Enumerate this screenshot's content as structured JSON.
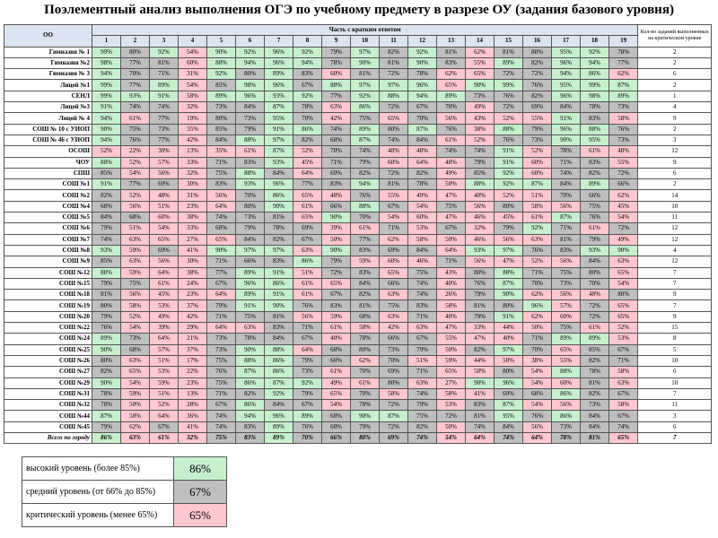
{
  "title": "Поэлементный анализ выполнения ОГЭ по учебному предмету в разрезе ОУ (задания базового уровня)",
  "header": {
    "oo": "ОО",
    "part": "Часть с кратким ответом",
    "columns": [
      1,
      2,
      3,
      4,
      5,
      6,
      7,
      8,
      9,
      10,
      11,
      12,
      13,
      14,
      15,
      16,
      17,
      18,
      19
    ],
    "count_label": "Кол-во заданий выполненных на критическом уровне"
  },
  "rows": [
    {
      "name": "Гимназия № 1",
      "values": [
        "99%",
        "80%",
        "92%",
        "54%",
        "90%",
        "92%",
        "96%",
        "92%",
        "79%",
        "97%",
        "82%",
        "92%",
        "81%",
        "62%",
        "81%",
        "80%",
        "95%",
        "92%",
        "78%"
      ],
      "critical_count": 2
    },
    {
      "name": "Гимназия №2",
      "values": [
        "98%",
        "77%",
        "81%",
        "60%",
        "88%",
        "94%",
        "96%",
        "94%",
        "78%",
        "90%",
        "81%",
        "90%",
        "83%",
        "55%",
        "89%",
        "82%",
        "96%",
        "94%",
        "77%"
      ],
      "critical_count": 2
    },
    {
      "name": "Гимназия № 3",
      "values": [
        "94%",
        "70%",
        "71%",
        "31%",
        "92%",
        "80%",
        "89%",
        "83%",
        "60%",
        "81%",
        "72%",
        "78%",
        "62%",
        "65%",
        "72%",
        "72%",
        "94%",
        "86%",
        "62%"
      ],
      "critical_count": 6
    },
    {
      "name": "Лицей №1",
      "values": [
        "99%",
        "77%",
        "89%",
        "54%",
        "85%",
        "98%",
        "96%",
        "67%",
        "88%",
        "97%",
        "97%",
        "96%",
        "65%",
        "90%",
        "99%",
        "76%",
        "95%",
        "99%",
        "87%"
      ],
      "critical_count": 2
    },
    {
      "name": "СЕНЛ",
      "values": [
        "99%",
        "93%",
        "91%",
        "58%",
        "89%",
        "96%",
        "93%",
        "92%",
        "77%",
        "92%",
        "88%",
        "94%",
        "89%",
        "73%",
        "76%",
        "82%",
        "96%",
        "98%",
        "89%"
      ],
      "critical_count": 1
    },
    {
      "name": "Лицей №3",
      "values": [
        "91%",
        "74%",
        "74%",
        "32%",
        "73%",
        "84%",
        "87%",
        "78%",
        "63%",
        "86%",
        "72%",
        "67%",
        "70%",
        "49%",
        "72%",
        "69%",
        "84%",
        "78%",
        "73%"
      ],
      "critical_count": 4
    },
    {
      "name": "Лицей № 4",
      "values": [
        "94%",
        "61%",
        "77%",
        "19%",
        "80%",
        "73%",
        "95%",
        "70%",
        "42%",
        "75%",
        "65%",
        "70%",
        "56%",
        "43%",
        "52%",
        "55%",
        "91%",
        "83%",
        "58%"
      ],
      "critical_count": 9
    },
    {
      "name": "СОШ № 10 с УИОП",
      "values": [
        "90%",
        "75%",
        "73%",
        "35%",
        "85%",
        "79%",
        "91%",
        "86%",
        "74%",
        "89%",
        "80%",
        "87%",
        "76%",
        "38%",
        "88%",
        "79%",
        "96%",
        "88%",
        "76%"
      ],
      "critical_count": 2
    },
    {
      "name": "СОШ № 46 с УИОП",
      "values": [
        "94%",
        "76%",
        "77%",
        "42%",
        "84%",
        "88%",
        "97%",
        "82%",
        "68%",
        "87%",
        "74%",
        "84%",
        "61%",
        "52%",
        "76%",
        "73%",
        "90%",
        "95%",
        "73%"
      ],
      "critical_count": 3
    },
    {
      "name": "ОСОШ",
      "values": [
        "52%",
        "22%",
        "30%",
        "13%",
        "35%",
        "61%",
        "87%",
        "52%",
        "70%",
        "74%",
        "48%",
        "48%",
        "74%",
        "74%",
        "91%",
        "52%",
        "78%",
        "61%",
        "48%"
      ],
      "critical_count": 12
    },
    {
      "name": "ЧОУ",
      "values": [
        "88%",
        "52%",
        "57%",
        "33%",
        "71%",
        "83%",
        "93%",
        "45%",
        "71%",
        "79%",
        "60%",
        "64%",
        "48%",
        "79%",
        "91%",
        "60%",
        "71%",
        "83%",
        "55%"
      ],
      "critical_count": 9
    },
    {
      "name": "СПШ",
      "values": [
        "85%",
        "54%",
        "56%",
        "32%",
        "75%",
        "88%",
        "84%",
        "64%",
        "69%",
        "82%",
        "72%",
        "82%",
        "49%",
        "85%",
        "92%",
        "60%",
        "74%",
        "82%",
        "72%"
      ],
      "critical_count": 6
    },
    {
      "name": "СОШ №1",
      "values": [
        "91%",
        "77%",
        "69%",
        "30%",
        "83%",
        "93%",
        "96%",
        "77%",
        "83%",
        "94%",
        "81%",
        "78%",
        "50%",
        "88%",
        "92%",
        "87%",
        "84%",
        "89%",
        "66%"
      ],
      "critical_count": 2
    },
    {
      "name": "СОШ №2",
      "values": [
        "82%",
        "52%",
        "48%",
        "31%",
        "56%",
        "70%",
        "86%",
        "65%",
        "48%",
        "76%",
        "55%",
        "49%",
        "47%",
        "40%",
        "52%",
        "51%",
        "70%",
        "66%",
        "62%"
      ],
      "critical_count": 14
    },
    {
      "name": "СОШ №4",
      "values": [
        "68%",
        "56%",
        "51%",
        "23%",
        "64%",
        "80%",
        "90%",
        "61%",
        "66%",
        "88%",
        "67%",
        "54%",
        "75%",
        "56%",
        "80%",
        "58%",
        "56%",
        "75%",
        "45%"
      ],
      "critical_count": 10
    },
    {
      "name": "СОШ №5",
      "values": [
        "84%",
        "68%",
        "60%",
        "38%",
        "74%",
        "73%",
        "81%",
        "65%",
        "90%",
        "70%",
        "54%",
        "60%",
        "47%",
        "46%",
        "45%",
        "61%",
        "87%",
        "76%",
        "54%"
      ],
      "critical_count": 11
    },
    {
      "name": "СОШ №6",
      "values": [
        "79%",
        "51%",
        "54%",
        "33%",
        "68%",
        "79%",
        "78%",
        "69%",
        "39%",
        "61%",
        "71%",
        "53%",
        "67%",
        "32%",
        "79%",
        "92%",
        "71%",
        "61%",
        "72%"
      ],
      "critical_count": 12
    },
    {
      "name": "СОШ №7",
      "values": [
        "74%",
        "63%",
        "65%",
        "27%",
        "65%",
        "84%",
        "82%",
        "67%",
        "50%",
        "77%",
        "62%",
        "58%",
        "50%",
        "46%",
        "56%",
        "63%",
        "81%",
        "79%",
        "49%"
      ],
      "critical_count": 12
    },
    {
      "name": "СОШ №8",
      "values": [
        "93%",
        "59%",
        "69%",
        "41%",
        "90%",
        "97%",
        "97%",
        "63%",
        "90%",
        "83%",
        "69%",
        "84%",
        "64%",
        "93%",
        "97%",
        "76%",
        "83%",
        "93%",
        "90%"
      ],
      "critical_count": 4
    },
    {
      "name": "СОШ №9",
      "values": [
        "85%",
        "63%",
        "56%",
        "30%",
        "71%",
        "66%",
        "83%",
        "86%",
        "79%",
        "59%",
        "60%",
        "46%",
        "71%",
        "56%",
        "47%",
        "52%",
        "56%",
        "84%",
        "63%"
      ],
      "critical_count": 12
    },
    {
      "name": "СОШ №12",
      "values": [
        "88%",
        "59%",
        "64%",
        "38%",
        "77%",
        "89%",
        "91%",
        "51%",
        "72%",
        "83%",
        "65%",
        "75%",
        "43%",
        "80%",
        "88%",
        "71%",
        "75%",
        "80%",
        "65%"
      ],
      "critical_count": 7
    },
    {
      "name": "СОШ №15",
      "values": [
        "79%",
        "75%",
        "61%",
        "24%",
        "67%",
        "96%",
        "86%",
        "61%",
        "65%",
        "84%",
        "66%",
        "74%",
        "40%",
        "76%",
        "87%",
        "70%",
        "73%",
        "70%",
        "54%"
      ],
      "critical_count": 7
    },
    {
      "name": "СОШ №18",
      "values": [
        "81%",
        "56%",
        "45%",
        "23%",
        "64%",
        "89%",
        "91%",
        "61%",
        "67%",
        "82%",
        "63%",
        "74%",
        "26%",
        "79%",
        "90%",
        "62%",
        "56%",
        "48%",
        "80%"
      ],
      "critical_count": 9
    },
    {
      "name": "СОШ №19",
      "values": [
        "80%",
        "58%",
        "53%",
        "37%",
        "79%",
        "91%",
        "90%",
        "76%",
        "83%",
        "81%",
        "75%",
        "83%",
        "58%",
        "81%",
        "80%",
        "96%",
        "57%",
        "72%",
        "65%"
      ],
      "critical_count": 7
    },
    {
      "name": "СОШ №20",
      "values": [
        "79%",
        "52%",
        "49%",
        "42%",
        "71%",
        "75%",
        "81%",
        "56%",
        "59%",
        "68%",
        "63%",
        "71%",
        "40%",
        "79%",
        "91%",
        "62%",
        "60%",
        "72%",
        "65%"
      ],
      "critical_count": 9
    },
    {
      "name": "СОШ №22",
      "values": [
        "76%",
        "54%",
        "39%",
        "29%",
        "64%",
        "63%",
        "83%",
        "71%",
        "61%",
        "58%",
        "42%",
        "63%",
        "47%",
        "33%",
        "44%",
        "50%",
        "75%",
        "61%",
        "52%"
      ],
      "critical_count": 15
    },
    {
      "name": "СОШ №24",
      "values": [
        "89%",
        "73%",
        "64%",
        "21%",
        "73%",
        "78%",
        "84%",
        "67%",
        "40%",
        "78%",
        "66%",
        "67%",
        "55%",
        "47%",
        "40%",
        "71%",
        "89%",
        "89%",
        "53%"
      ],
      "critical_count": 8
    },
    {
      "name": "СОШ №25",
      "values": [
        "90%",
        "68%",
        "57%",
        "37%",
        "73%",
        "90%",
        "88%",
        "64%",
        "68%",
        "80%",
        "73%",
        "79%",
        "50%",
        "82%",
        "97%",
        "70%",
        "65%",
        "85%",
        "67%"
      ],
      "critical_count": 5
    },
    {
      "name": "СОШ №26",
      "values": [
        "80%",
        "63%",
        "51%",
        "17%",
        "75%",
        "88%",
        "86%",
        "79%",
        "66%",
        "62%",
        "70%",
        "51%",
        "59%",
        "44%",
        "50%",
        "38%",
        "55%",
        "82%",
        "71%"
      ],
      "critical_count": 10
    },
    {
      "name": "СОШ №27",
      "values": [
        "82%",
        "65%",
        "53%",
        "22%",
        "76%",
        "87%",
        "86%",
        "73%",
        "61%",
        "70%",
        "69%",
        "71%",
        "65%",
        "50%",
        "80%",
        "54%",
        "88%",
        "78%",
        "58%"
      ],
      "critical_count": 6
    },
    {
      "name": "СОШ №29",
      "values": [
        "90%",
        "54%",
        "59%",
        "23%",
        "75%",
        "86%",
        "87%",
        "92%",
        "49%",
        "61%",
        "80%",
        "63%",
        "27%",
        "90%",
        "96%",
        "54%",
        "60%",
        "81%",
        "63%"
      ],
      "critical_count": 10
    },
    {
      "name": "СОШ №31",
      "values": [
        "78%",
        "59%",
        "51%",
        "13%",
        "71%",
        "82%",
        "92%",
        "79%",
        "65%",
        "70%",
        "58%",
        "74%",
        "58%",
        "41%",
        "69%",
        "68%",
        "86%",
        "82%",
        "67%"
      ],
      "critical_count": 7
    },
    {
      "name": "СОШ №32",
      "values": [
        "78%",
        "50%",
        "52%",
        "28%",
        "67%",
        "86%",
        "84%",
        "67%",
        "54%",
        "78%",
        "72%",
        "79%",
        "53%",
        "83%",
        "87%",
        "54%",
        "56%",
        "73%",
        "58%"
      ],
      "critical_count": 11
    },
    {
      "name": "СОШ №44",
      "values": [
        "87%",
        "58%",
        "64%",
        "36%",
        "74%",
        "94%",
        "96%",
        "89%",
        "68%",
        "90%",
        "87%",
        "75%",
        "72%",
        "81%",
        "95%",
        "76%",
        "86%",
        "84%",
        "67%"
      ],
      "critical_count": 3
    },
    {
      "name": "СОШ №45",
      "values": [
        "79%",
        "62%",
        "67%",
        "41%",
        "74%",
        "83%",
        "89%",
        "76%",
        "68%",
        "79%",
        "72%",
        "82%",
        "50%",
        "74%",
        "84%",
        "56%",
        "73%",
        "84%",
        "74%"
      ],
      "critical_count": 6
    }
  ],
  "total": {
    "name": "Всего по городу",
    "values": [
      "86%",
      "63%",
      "61%",
      "32%",
      "75%",
      "83%",
      "89%",
      "70%",
      "66%",
      "80%",
      "69%",
      "74%",
      "54%",
      "64%",
      "74%",
      "64%",
      "78%",
      "81%",
      "65%"
    ],
    "critical_count": 7
  },
  "legend": {
    "items": [
      {
        "label": "высокий уровень (более 85%)",
        "sample": "86%",
        "color": "#c6efce"
      },
      {
        "label": "средний уровень (от 66% до 85%)",
        "sample": "67%",
        "color": "#bfbfbf"
      },
      {
        "label": "критический уровень (менее 65%)",
        "sample": "65%",
        "color": "#ffc7ce"
      }
    ]
  }
}
